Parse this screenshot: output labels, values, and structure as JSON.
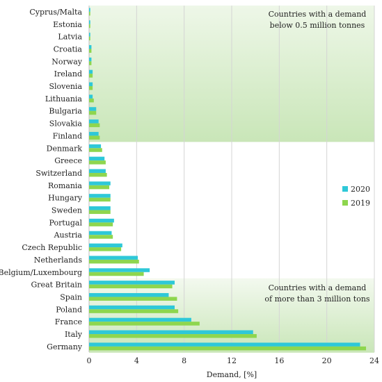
{
  "chart_data": {
    "type": "bar",
    "orientation": "horizontal",
    "categories": [
      "Cyprus/Malta",
      "Estonia",
      "Latvia",
      "Croatia",
      "Norway",
      "Ireland",
      "Slovenia",
      "Lithuania",
      "Bulgaria",
      "Slovakia",
      "Finland",
      "Denmark",
      "Greece",
      "Switzerland",
      "Romania",
      "Hungary",
      "Sweden",
      "Portugal",
      "Austria",
      "Czech Republic",
      "Netherlands",
      "Belgium/Luxembourg",
      "Great Britain",
      "Spain",
      "Poland",
      "France",
      "Italy",
      "Germany"
    ],
    "series": [
      {
        "name": "2020",
        "color": "#2ec8d8",
        "values": [
          0.1,
          0.1,
          0.1,
          0.2,
          0.2,
          0.3,
          0.3,
          0.3,
          0.6,
          0.8,
          0.8,
          1.0,
          1.3,
          1.4,
          1.8,
          1.8,
          1.8,
          2.1,
          1.9,
          2.8,
          4.1,
          5.1,
          7.2,
          6.7,
          7.2,
          8.6,
          13.8,
          22.8
        ]
      },
      {
        "name": "2019",
        "color": "#8ed64e",
        "values": [
          0.1,
          0.1,
          0.1,
          0.2,
          0.2,
          0.3,
          0.3,
          0.4,
          0.6,
          0.9,
          0.9,
          1.1,
          1.4,
          1.5,
          1.7,
          1.8,
          1.8,
          2.0,
          2.0,
          2.7,
          4.2,
          4.6,
          7.0,
          7.4,
          7.5,
          9.3,
          14.1,
          23.3
        ]
      }
    ],
    "xlabel": "Demand, [%]",
    "xlim": [
      0,
      24
    ],
    "xticks": [
      0,
      4,
      8,
      12,
      16,
      20,
      24
    ],
    "grid": "vertical",
    "legend_position": "right",
    "annotations": [
      {
        "text": [
          "Countries with a demand",
          "below 0.5 million tonnes"
        ],
        "position": "top-right"
      },
      {
        "text": [
          "Countries with a demand",
          "of more than 3 million tons"
        ],
        "position": "bottom-right"
      }
    ],
    "bands": [
      {
        "from_category": "Cyprus/Malta",
        "to_category": "Finland",
        "color": "#cfe8c0"
      },
      {
        "from_category": "Great Britain",
        "to_category": "Germany",
        "color": "#cfe8c0"
      }
    ]
  }
}
